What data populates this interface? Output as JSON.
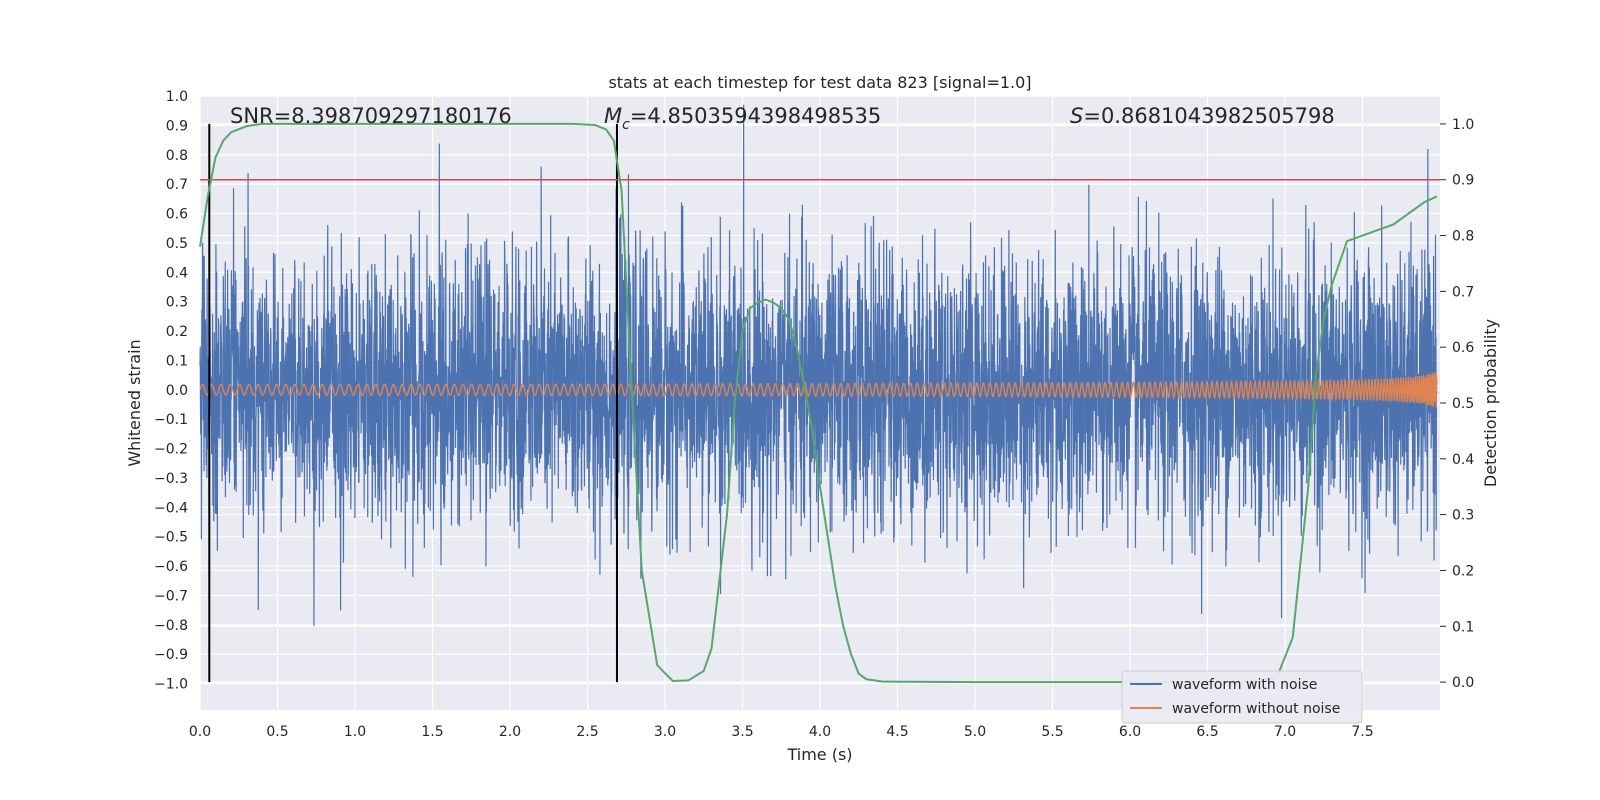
{
  "chart_data": {
    "type": "line",
    "title": "stats at each timestep for test data 823 [signal=1.0]",
    "xlabel": "Time (s)",
    "ylabel": "Whitened strain",
    "ylabel_right": "Detection probability",
    "xlim": [
      0.0,
      8.0
    ],
    "ylim": [
      -1.09,
      1.0
    ],
    "ylim_right": [
      -0.05,
      1.05
    ],
    "xticks": [
      "0.0",
      "0.5",
      "1.0",
      "1.5",
      "2.0",
      "2.5",
      "3.0",
      "3.5",
      "4.0",
      "4.5",
      "5.0",
      "5.5",
      "6.0",
      "6.5",
      "7.0",
      "7.5"
    ],
    "yticks": [
      "1.0",
      "0.9",
      "0.8",
      "0.7",
      "0.6",
      "0.5",
      "0.4",
      "0.3",
      "0.2",
      "0.1",
      "0.0",
      "−0.1",
      "−0.2",
      "−0.3",
      "−0.4",
      "−0.5",
      "−0.6",
      "−0.7",
      "−0.8",
      "−0.9",
      "−1.0"
    ],
    "yticks_right": [
      "1.0",
      "0.9",
      "0.8",
      "0.7",
      "0.6",
      "0.5",
      "0.4",
      "0.3",
      "0.2",
      "0.1",
      "0.0"
    ],
    "grid": true,
    "legend_position": "lower-right",
    "annotations": {
      "snr": "SNR=8.398709297180176",
      "mc_symbol": "M",
      "mc_sub": "c",
      "mc_value": "=4.8503594398498535",
      "s_symbol": "S",
      "s_value": "=0.8681043982505798"
    },
    "threshold": {
      "value": 0.9,
      "axis": "right",
      "color": "#c44e52"
    },
    "vlines": [
      0.06,
      2.69
    ],
    "series": [
      {
        "name": "waveform with noise",
        "color": "#4c72b0",
        "axis": "left",
        "description_kind": "noise"
      },
      {
        "name": "waveform without noise",
        "color": "#dd8452",
        "axis": "left",
        "description_kind": "chirp"
      },
      {
        "color": "#55a868",
        "axis": "right",
        "x": [
          0.0,
          0.05,
          0.1,
          0.15,
          0.2,
          0.3,
          0.4,
          0.6,
          1.0,
          1.5,
          2.0,
          2.4,
          2.55,
          2.62,
          2.67,
          2.72,
          2.78,
          2.85,
          2.95,
          3.05,
          3.15,
          3.25,
          3.3,
          3.4,
          3.45,
          3.5,
          3.55,
          3.6,
          3.65,
          3.7,
          3.75,
          3.8,
          3.85,
          3.9,
          3.95,
          4.0,
          4.05,
          4.1,
          4.15,
          4.2,
          4.25,
          4.3,
          4.4,
          5.0,
          6.0,
          6.8,
          6.95,
          7.05,
          7.15,
          7.2,
          7.25,
          7.3,
          7.35,
          7.4,
          7.5,
          7.6,
          7.7,
          7.8,
          7.9,
          7.98
        ],
        "y": [
          0.78,
          0.87,
          0.94,
          0.97,
          0.985,
          0.996,
          1.0,
          1.0,
          1.0,
          1.0,
          1.0,
          1.0,
          0.998,
          0.99,
          0.97,
          0.88,
          0.55,
          0.2,
          0.03,
          0.002,
          0.003,
          0.02,
          0.06,
          0.3,
          0.5,
          0.63,
          0.67,
          0.68,
          0.685,
          0.68,
          0.67,
          0.65,
          0.6,
          0.53,
          0.45,
          0.35,
          0.26,
          0.17,
          0.1,
          0.05,
          0.015,
          0.005,
          0.001,
          0.0,
          0.0,
          0.0,
          0.01,
          0.08,
          0.35,
          0.55,
          0.65,
          0.71,
          0.75,
          0.79,
          0.8,
          0.81,
          0.82,
          0.84,
          0.86,
          0.87
        ]
      }
    ]
  }
}
